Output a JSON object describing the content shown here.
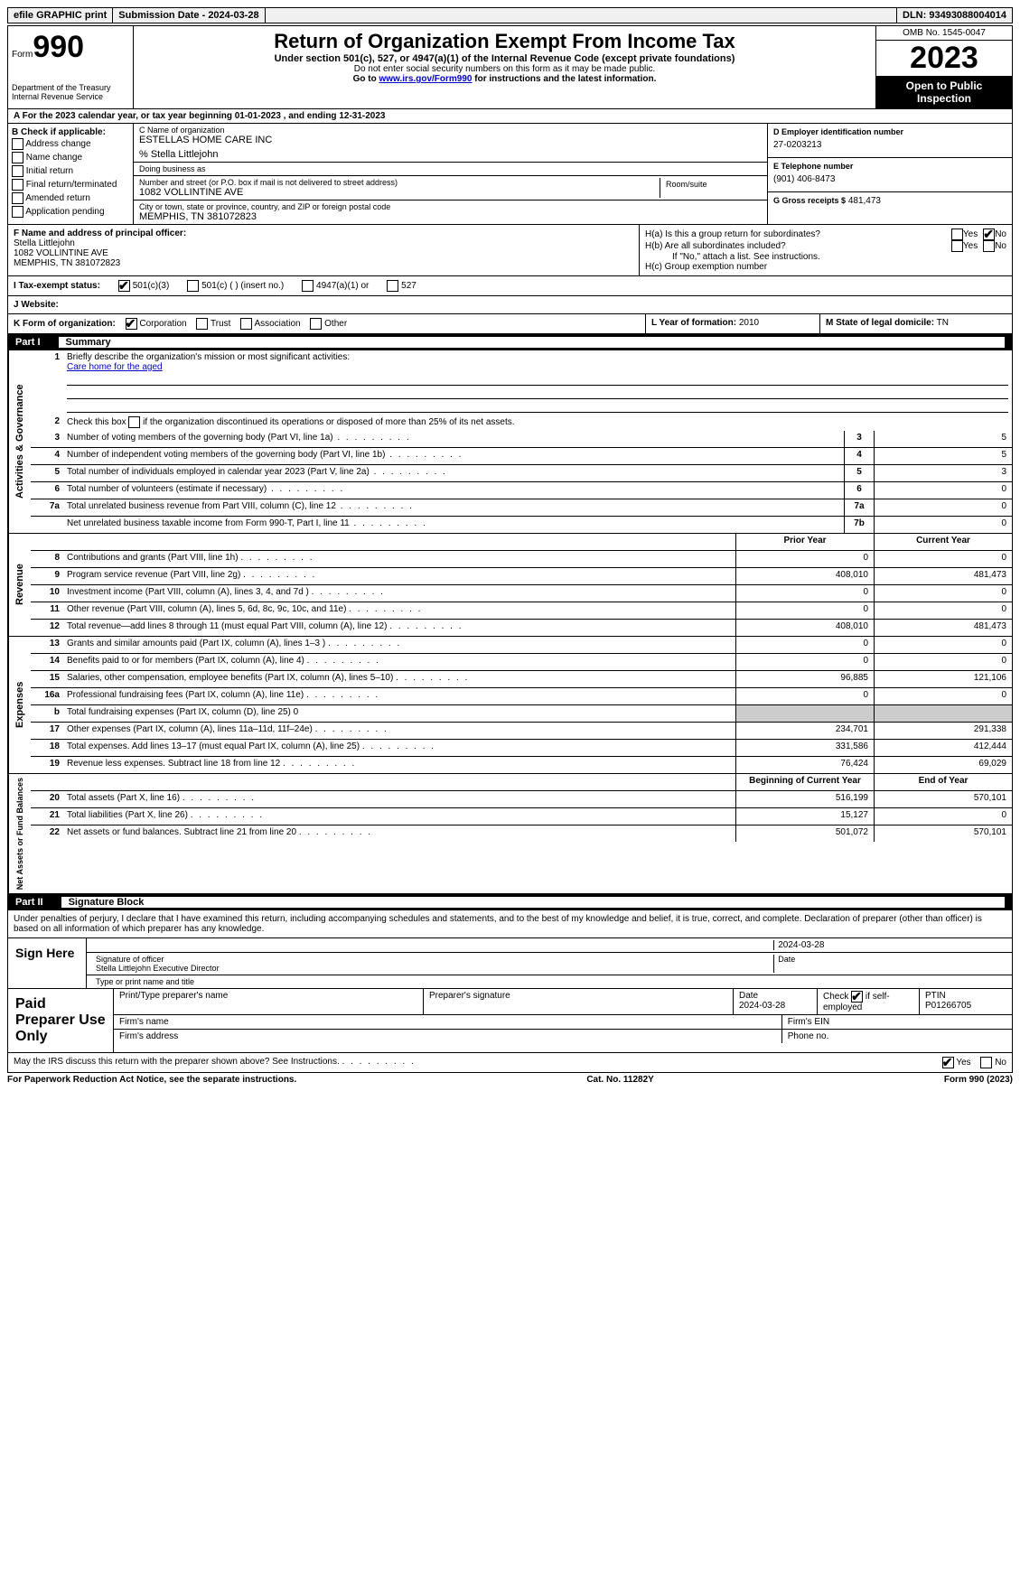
{
  "topbar": {
    "efile": "efile GRAPHIC print",
    "submission": "Submission Date - 2024-03-28",
    "dln": "DLN: 93493088004014"
  },
  "header": {
    "form": "Form",
    "formnum": "990",
    "dept": "Department of the Treasury Internal Revenue Service",
    "title": "Return of Organization Exempt From Income Tax",
    "sub": "Under section 501(c), 527, or 4947(a)(1) of the Internal Revenue Code (except private foundations)",
    "ssn": "Do not enter social security numbers on this form as it may be made public.",
    "goto": "Go to ",
    "gotolink": "www.irs.gov/Form990",
    "gotorest": " for instructions and the latest information.",
    "omb": "OMB No. 1545-0047",
    "year": "2023",
    "open": "Open to Public Inspection"
  },
  "lineA": "A For the 2023 calendar year, or tax year beginning 01-01-2023   , and ending 12-31-2023",
  "colB": {
    "title": "B Check if applicable:",
    "opts": [
      "Address change",
      "Name change",
      "Initial return",
      "Final return/terminated",
      "Amended return",
      "Application pending"
    ]
  },
  "colC": {
    "nameLbl": "C Name of organization",
    "name": "ESTELLAS HOME CARE INC",
    "care": "% Stella Littlejohn",
    "dbaLbl": "Doing business as",
    "dba": "",
    "streetLbl": "Number and street (or P.O. box if mail is not delivered to street address)",
    "street": "1082 VOLLINTINE AVE",
    "roomLbl": "Room/suite",
    "cityLbl": "City or town, state or province, country, and ZIP or foreign postal code",
    "city": "MEMPHIS, TN  381072823"
  },
  "colD": {
    "einLbl": "D Employer identification number",
    "ein": "27-0203213",
    "telLbl": "E Telephone number",
    "tel": "(901) 406-8473",
    "grossLbl": "G Gross receipts $",
    "gross": "481,473"
  },
  "F": {
    "lbl": "F Name and address of principal officer:",
    "name": "Stella Littlejohn",
    "addr1": "1082 VOLLINTINE AVE",
    "addr2": "MEMPHIS, TN  381072823"
  },
  "H": {
    "a": "H(a)  Is this a group return for subordinates?",
    "b": "H(b)  Are all subordinates included?",
    "note": "If \"No,\" attach a list. See instructions.",
    "c": "H(c)  Group exemption number",
    "yes": "Yes",
    "no": "No"
  },
  "I": {
    "lbl": "I  Tax-exempt status:",
    "o1": "501(c)(3)",
    "o2": "501(c) (  ) (insert no.)",
    "o3": "4947(a)(1) or",
    "o4": "527"
  },
  "J": {
    "lbl": "J  Website:",
    "val": ""
  },
  "K": {
    "lbl": "K Form of organization:",
    "o1": "Corporation",
    "o2": "Trust",
    "o3": "Association",
    "o4": "Other"
  },
  "L": {
    "lbl": "L Year of formation:",
    "val": "2010"
  },
  "M": {
    "lbl": "M State of legal domicile:",
    "val": "TN"
  },
  "part1": {
    "num": "Part I",
    "title": "Summary"
  },
  "gov": {
    "label": "Activities & Governance",
    "l1": "Briefly describe the organization's mission or most significant activities:",
    "mission": "Care home for the aged",
    "l2": "Check this box      if the organization discontinued its operations or disposed of more than 25% of its net assets.",
    "rows": [
      {
        "n": "3",
        "d": "Number of voting members of the governing body (Part VI, line 1a)",
        "b": "3",
        "v": "5"
      },
      {
        "n": "4",
        "d": "Number of independent voting members of the governing body (Part VI, line 1b)",
        "b": "4",
        "v": "5"
      },
      {
        "n": "5",
        "d": "Total number of individuals employed in calendar year 2023 (Part V, line 2a)",
        "b": "5",
        "v": "3"
      },
      {
        "n": "6",
        "d": "Total number of volunteers (estimate if necessary)",
        "b": "6",
        "v": "0"
      },
      {
        "n": "7a",
        "d": "Total unrelated business revenue from Part VIII, column (C), line 12",
        "b": "7a",
        "v": "0"
      },
      {
        "n": "",
        "d": "Net unrelated business taxable income from Form 990-T, Part I, line 11",
        "b": "7b",
        "v": "0"
      }
    ]
  },
  "rev": {
    "label": "Revenue",
    "hdr1": "Prior Year",
    "hdr2": "Current Year",
    "rows": [
      {
        "n": "8",
        "d": "Contributions and grants (Part VIII, line 1h)",
        "v1": "0",
        "v2": "0"
      },
      {
        "n": "9",
        "d": "Program service revenue (Part VIII, line 2g)",
        "v1": "408,010",
        "v2": "481,473"
      },
      {
        "n": "10",
        "d": "Investment income (Part VIII, column (A), lines 3, 4, and 7d )",
        "v1": "0",
        "v2": "0"
      },
      {
        "n": "11",
        "d": "Other revenue (Part VIII, column (A), lines 5, 6d, 8c, 9c, 10c, and 11e)",
        "v1": "0",
        "v2": "0"
      },
      {
        "n": "12",
        "d": "Total revenue—add lines 8 through 11 (must equal Part VIII, column (A), line 12)",
        "v1": "408,010",
        "v2": "481,473"
      }
    ]
  },
  "exp": {
    "label": "Expenses",
    "rows": [
      {
        "n": "13",
        "d": "Grants and similar amounts paid (Part IX, column (A), lines 1–3 )",
        "v1": "0",
        "v2": "0"
      },
      {
        "n": "14",
        "d": "Benefits paid to or for members (Part IX, column (A), line 4)",
        "v1": "0",
        "v2": "0"
      },
      {
        "n": "15",
        "d": "Salaries, other compensation, employee benefits (Part IX, column (A), lines 5–10)",
        "v1": "96,885",
        "v2": "121,106"
      },
      {
        "n": "16a",
        "d": "Professional fundraising fees (Part IX, column (A), line 11e)",
        "v1": "0",
        "v2": "0"
      },
      {
        "n": "b",
        "d": "Total fundraising expenses (Part IX, column (D), line 25) 0",
        "v1": "",
        "v2": "",
        "shade": true
      },
      {
        "n": "17",
        "d": "Other expenses (Part IX, column (A), lines 11a–11d, 11f–24e)",
        "v1": "234,701",
        "v2": "291,338"
      },
      {
        "n": "18",
        "d": "Total expenses. Add lines 13–17 (must equal Part IX, column (A), line 25)",
        "v1": "331,586",
        "v2": "412,444"
      },
      {
        "n": "19",
        "d": "Revenue less expenses. Subtract line 18 from line 12",
        "v1": "76,424",
        "v2": "69,029"
      }
    ]
  },
  "net": {
    "label": "Net Assets or Fund Balances",
    "hdr1": "Beginning of Current Year",
    "hdr2": "End of Year",
    "rows": [
      {
        "n": "20",
        "d": "Total assets (Part X, line 16)",
        "v1": "516,199",
        "v2": "570,101"
      },
      {
        "n": "21",
        "d": "Total liabilities (Part X, line 26)",
        "v1": "15,127",
        "v2": "0"
      },
      {
        "n": "22",
        "d": "Net assets or fund balances. Subtract line 21 from line 20",
        "v1": "501,072",
        "v2": "570,101"
      }
    ]
  },
  "part2": {
    "num": "Part II",
    "title": "Signature Block"
  },
  "sig": {
    "declare": "Under penalties of perjury, I declare that I have examined this return, including accompanying schedules and statements, and to the best of my knowledge and belief, it is true, correct, and complete. Declaration of preparer (other than officer) is based on all information of which preparer has any knowledge.",
    "signhere": "Sign Here",
    "sigoff_lbl": "Signature of officer",
    "date": "2024-03-28",
    "datelbl": "Date",
    "name": "Stella Littlejohn  Executive Director",
    "typelbl": "Type or print name and title"
  },
  "paid": {
    "lbl": "Paid Preparer Use Only",
    "h1": "Print/Type preparer's name",
    "h2": "Preparer's signature",
    "h3": "Date",
    "h3v": "2024-03-28",
    "h4": "Check",
    "h4b": "if self-employed",
    "h5": "PTIN",
    "h5v": "P01266705",
    "firm": "Firm's name",
    "ein": "Firm's EIN",
    "addr": "Firm's address",
    "phone": "Phone no."
  },
  "discuss": {
    "q": "May the IRS discuss this return with the preparer shown above? See Instructions.",
    "yes": "Yes",
    "no": "No"
  },
  "footer": {
    "l": "For Paperwork Reduction Act Notice, see the separate instructions.",
    "m": "Cat. No. 11282Y",
    "r": "Form 990 (2023)"
  }
}
